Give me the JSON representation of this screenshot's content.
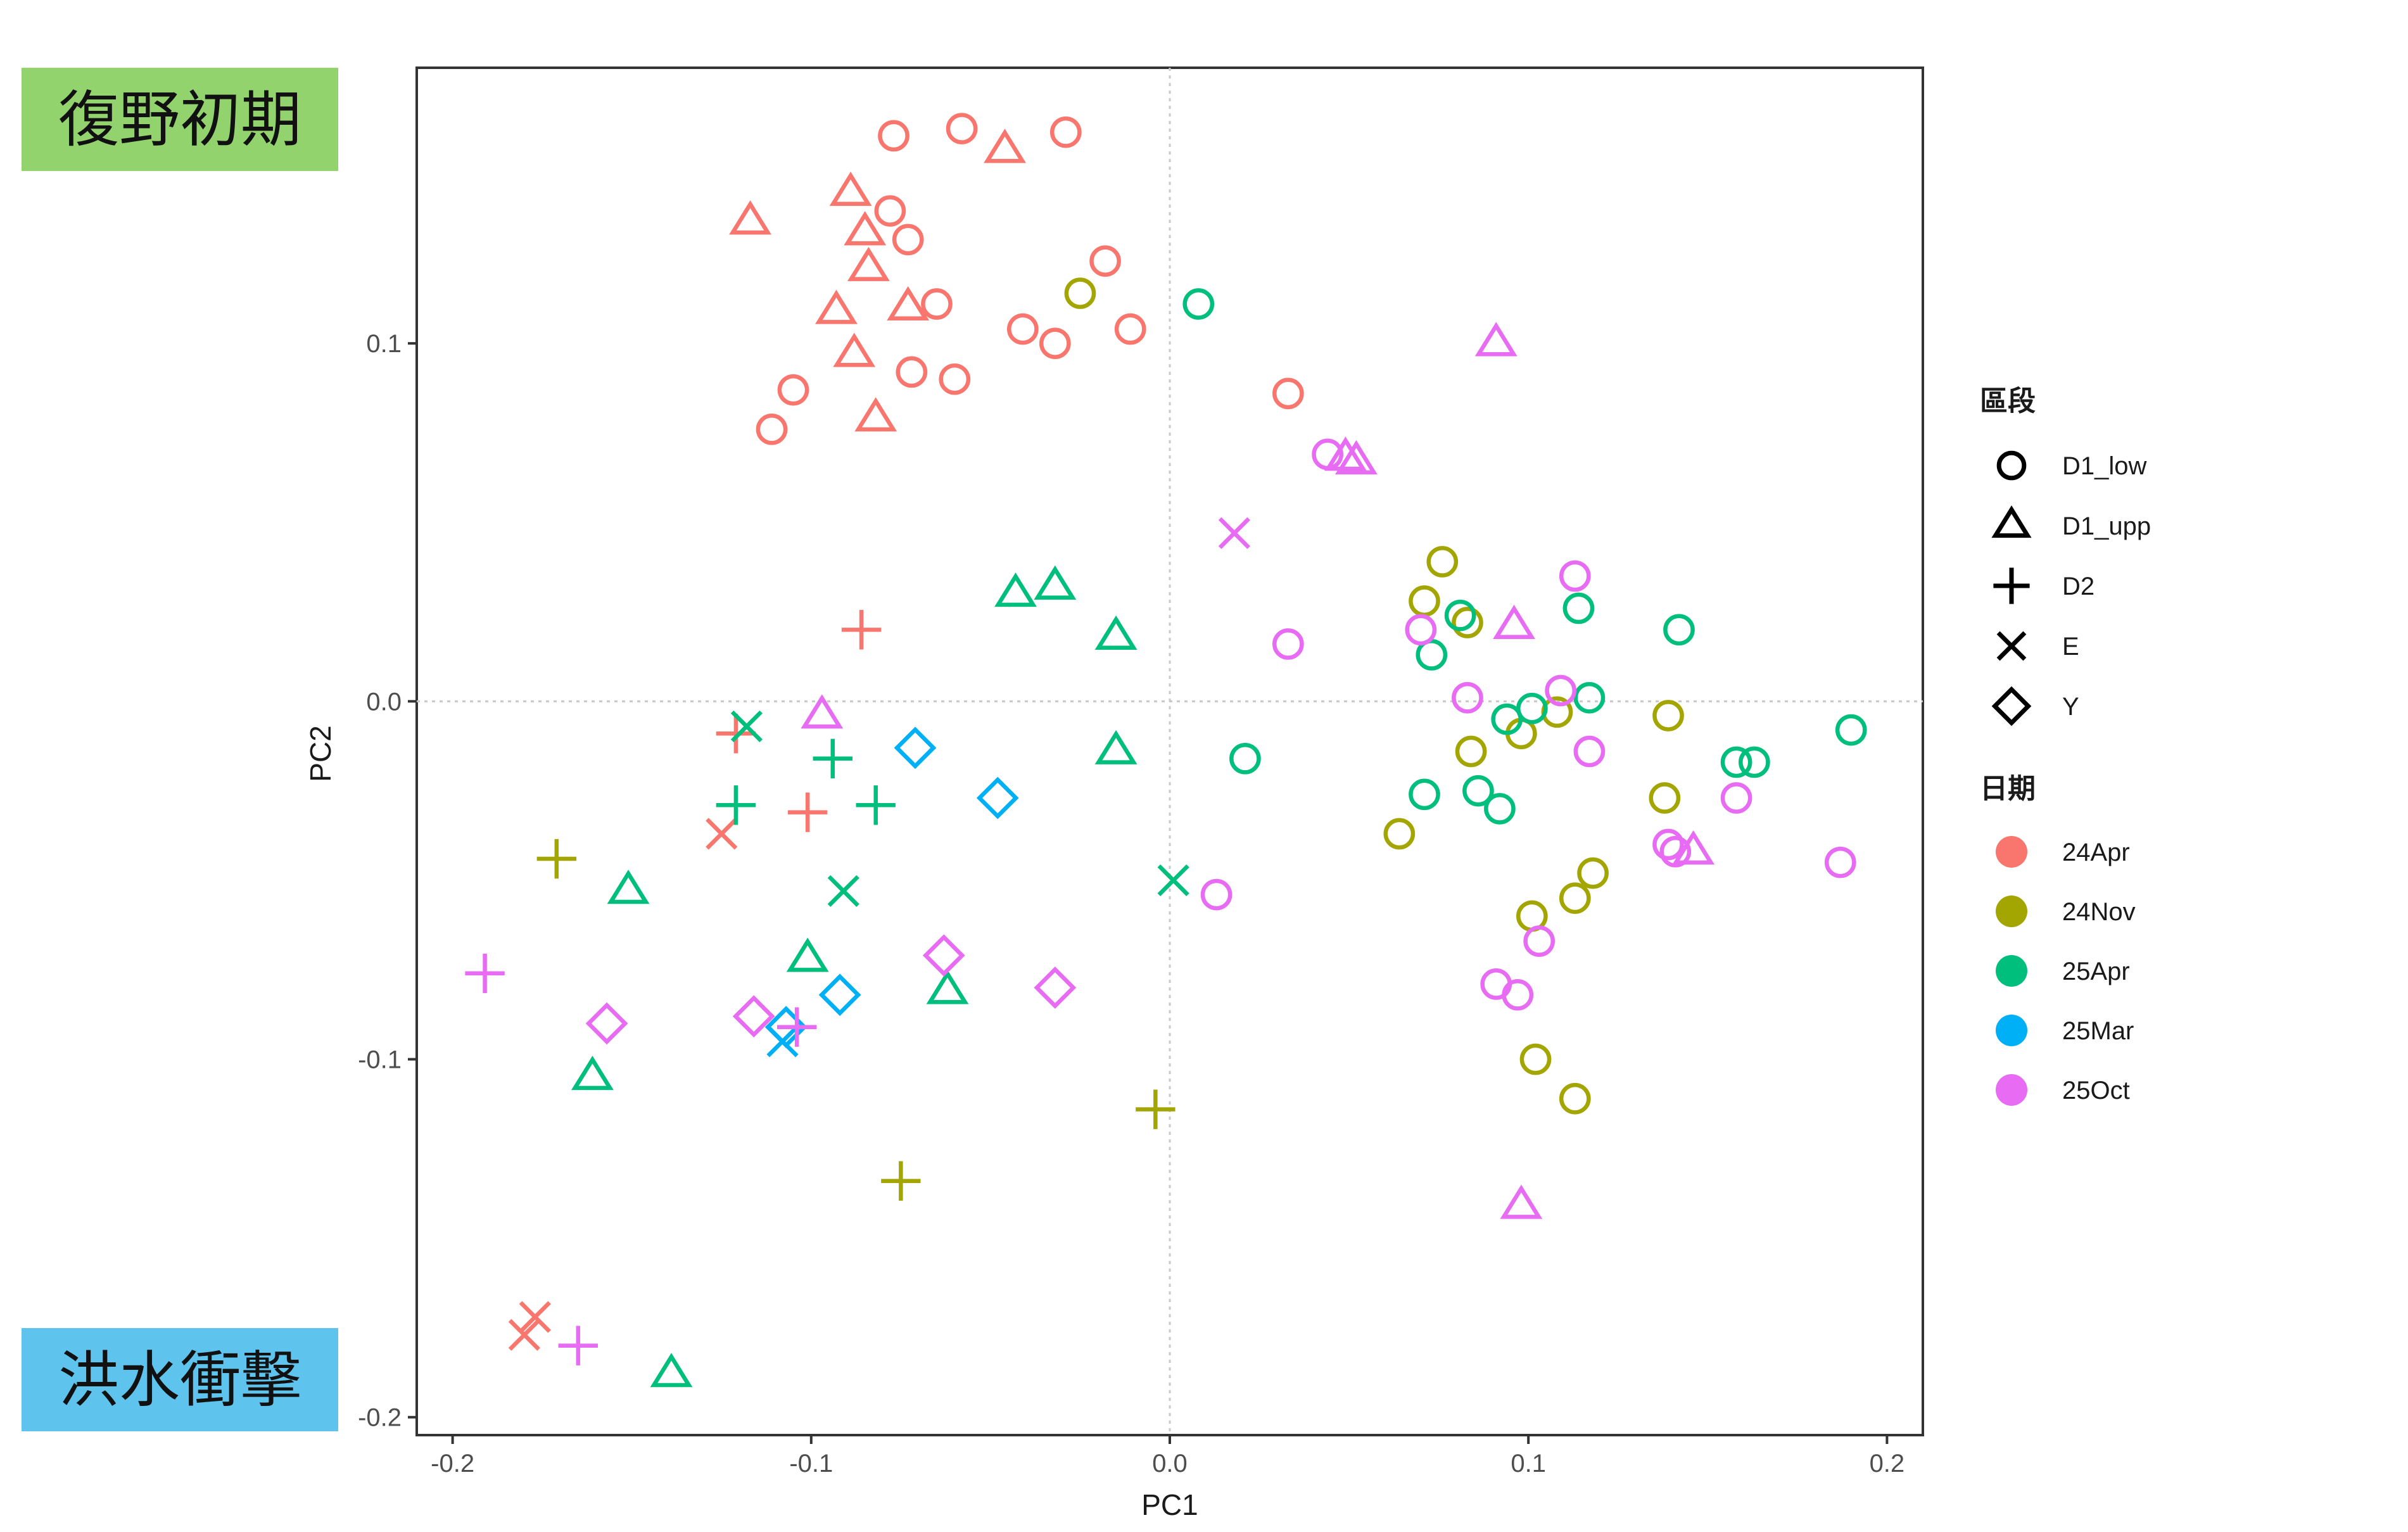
{
  "banners": {
    "top": {
      "text": "復野初期",
      "color": "#92d36e"
    },
    "bottom": {
      "text": "洪水衝擊",
      "color": "#5ec4ee"
    }
  },
  "colors": {
    "24Apr": "#f8766d",
    "24Nov": "#a3a500",
    "25Apr": "#00bf7d",
    "25Mar": "#00b0f6",
    "25Oct": "#e76bf3"
  },
  "chart_data": {
    "type": "scatter",
    "xlabel": "PC1",
    "ylabel": "PC2",
    "xlim": [
      -0.21,
      0.21
    ],
    "ylim": [
      -0.205,
      0.177
    ],
    "xticks": [
      -0.2,
      -0.1,
      0.0,
      0.1,
      0.2
    ],
    "xtick_labels": [
      "-0.2",
      "-0.1",
      "0.0",
      "0.1",
      "0.2"
    ],
    "yticks": [
      -0.2,
      -0.1,
      0.0,
      0.1
    ],
    "ytick_labels": [
      "-0.2",
      "-0.1",
      "0.0",
      "0.1"
    ],
    "grid": "zero lines only (dotted)",
    "legend_placement": "right",
    "legend": {
      "shape_title": "區段",
      "shapes": [
        {
          "key": "circle",
          "label": "D1_low"
        },
        {
          "key": "triangle",
          "label": "D1_upp"
        },
        {
          "key": "plus",
          "label": "D2"
        },
        {
          "key": "cross",
          "label": "E"
        },
        {
          "key": "diamond",
          "label": "Y"
        }
      ],
      "color_title": "日期",
      "colors": [
        "24Apr",
        "24Nov",
        "25Apr",
        "25Mar",
        "25Oct"
      ]
    },
    "points": [
      {
        "x": -0.077,
        "y": 0.158,
        "shape": "circle",
        "group": "24Apr"
      },
      {
        "x": -0.058,
        "y": 0.16,
        "shape": "circle",
        "group": "24Apr"
      },
      {
        "x": -0.029,
        "y": 0.159,
        "shape": "circle",
        "group": "24Apr"
      },
      {
        "x": -0.078,
        "y": 0.137,
        "shape": "circle",
        "group": "24Apr"
      },
      {
        "x": -0.073,
        "y": 0.129,
        "shape": "circle",
        "group": "24Apr"
      },
      {
        "x": -0.018,
        "y": 0.123,
        "shape": "circle",
        "group": "24Apr"
      },
      {
        "x": -0.065,
        "y": 0.111,
        "shape": "circle",
        "group": "24Apr"
      },
      {
        "x": -0.041,
        "y": 0.104,
        "shape": "circle",
        "group": "24Apr"
      },
      {
        "x": -0.032,
        "y": 0.1,
        "shape": "circle",
        "group": "24Apr"
      },
      {
        "x": -0.011,
        "y": 0.104,
        "shape": "circle",
        "group": "24Apr"
      },
      {
        "x": -0.072,
        "y": 0.092,
        "shape": "circle",
        "group": "24Apr"
      },
      {
        "x": -0.06,
        "y": 0.09,
        "shape": "circle",
        "group": "24Apr"
      },
      {
        "x": -0.105,
        "y": 0.087,
        "shape": "circle",
        "group": "24Apr"
      },
      {
        "x": -0.111,
        "y": 0.076,
        "shape": "circle",
        "group": "24Apr"
      },
      {
        "x": 0.033,
        "y": 0.086,
        "shape": "circle",
        "group": "24Apr"
      },
      {
        "x": -0.046,
        "y": 0.154,
        "shape": "triangle",
        "group": "24Apr"
      },
      {
        "x": -0.117,
        "y": 0.134,
        "shape": "triangle",
        "group": "24Apr"
      },
      {
        "x": -0.089,
        "y": 0.142,
        "shape": "triangle",
        "group": "24Apr"
      },
      {
        "x": -0.085,
        "y": 0.131,
        "shape": "triangle",
        "group": "24Apr"
      },
      {
        "x": -0.084,
        "y": 0.121,
        "shape": "triangle",
        "group": "24Apr"
      },
      {
        "x": -0.093,
        "y": 0.109,
        "shape": "triangle",
        "group": "24Apr"
      },
      {
        "x": -0.073,
        "y": 0.11,
        "shape": "triangle",
        "group": "24Apr"
      },
      {
        "x": -0.088,
        "y": 0.097,
        "shape": "triangle",
        "group": "24Apr"
      },
      {
        "x": -0.082,
        "y": 0.079,
        "shape": "triangle",
        "group": "24Apr"
      },
      {
        "x": -0.086,
        "y": 0.02,
        "shape": "plus",
        "group": "24Apr"
      },
      {
        "x": -0.121,
        "y": -0.009,
        "shape": "plus",
        "group": "24Apr"
      },
      {
        "x": -0.101,
        "y": -0.031,
        "shape": "plus",
        "group": "24Apr"
      },
      {
        "x": -0.125,
        "y": -0.037,
        "shape": "cross",
        "group": "24Apr"
      },
      {
        "x": -0.177,
        "y": -0.172,
        "shape": "cross",
        "group": "24Apr"
      },
      {
        "x": -0.18,
        "y": -0.177,
        "shape": "cross",
        "group": "24Apr"
      },
      {
        "x": -0.025,
        "y": 0.114,
        "shape": "circle",
        "group": "24Nov"
      },
      {
        "x": 0.076,
        "y": 0.039,
        "shape": "circle",
        "group": "24Nov"
      },
      {
        "x": 0.071,
        "y": 0.028,
        "shape": "circle",
        "group": "24Nov"
      },
      {
        "x": 0.083,
        "y": 0.022,
        "shape": "circle",
        "group": "24Nov"
      },
      {
        "x": 0.108,
        "y": -0.003,
        "shape": "circle",
        "group": "24Nov"
      },
      {
        "x": 0.098,
        "y": -0.009,
        "shape": "circle",
        "group": "24Nov"
      },
      {
        "x": 0.084,
        "y": -0.014,
        "shape": "circle",
        "group": "24Nov"
      },
      {
        "x": 0.139,
        "y": -0.004,
        "shape": "circle",
        "group": "24Nov"
      },
      {
        "x": 0.138,
        "y": -0.027,
        "shape": "circle",
        "group": "24Nov"
      },
      {
        "x": 0.064,
        "y": -0.037,
        "shape": "circle",
        "group": "24Nov"
      },
      {
        "x": 0.118,
        "y": -0.048,
        "shape": "circle",
        "group": "24Nov"
      },
      {
        "x": 0.113,
        "y": -0.055,
        "shape": "circle",
        "group": "24Nov"
      },
      {
        "x": 0.101,
        "y": -0.06,
        "shape": "circle",
        "group": "24Nov"
      },
      {
        "x": 0.102,
        "y": -0.1,
        "shape": "circle",
        "group": "24Nov"
      },
      {
        "x": 0.113,
        "y": -0.111,
        "shape": "circle",
        "group": "24Nov"
      },
      {
        "x": -0.171,
        "y": -0.044,
        "shape": "plus",
        "group": "24Nov"
      },
      {
        "x": -0.004,
        "y": -0.114,
        "shape": "plus",
        "group": "24Nov"
      },
      {
        "x": -0.075,
        "y": -0.134,
        "shape": "plus",
        "group": "24Nov"
      },
      {
        "x": 0.008,
        "y": 0.111,
        "shape": "circle",
        "group": "25Apr"
      },
      {
        "x": 0.081,
        "y": 0.024,
        "shape": "circle",
        "group": "25Apr"
      },
      {
        "x": 0.114,
        "y": 0.026,
        "shape": "circle",
        "group": "25Apr"
      },
      {
        "x": 0.142,
        "y": 0.02,
        "shape": "circle",
        "group": "25Apr"
      },
      {
        "x": 0.073,
        "y": 0.013,
        "shape": "circle",
        "group": "25Apr"
      },
      {
        "x": 0.117,
        "y": 0.001,
        "shape": "circle",
        "group": "25Apr"
      },
      {
        "x": 0.101,
        "y": -0.002,
        "shape": "circle",
        "group": "25Apr"
      },
      {
        "x": 0.094,
        "y": -0.005,
        "shape": "circle",
        "group": "25Apr"
      },
      {
        "x": 0.021,
        "y": -0.016,
        "shape": "circle",
        "group": "25Apr"
      },
      {
        "x": 0.071,
        "y": -0.026,
        "shape": "circle",
        "group": "25Apr"
      },
      {
        "x": 0.086,
        "y": -0.025,
        "shape": "circle",
        "group": "25Apr"
      },
      {
        "x": 0.092,
        "y": -0.03,
        "shape": "circle",
        "group": "25Apr"
      },
      {
        "x": 0.158,
        "y": -0.017,
        "shape": "circle",
        "group": "25Apr"
      },
      {
        "x": 0.163,
        "y": -0.017,
        "shape": "circle",
        "group": "25Apr"
      },
      {
        "x": 0.19,
        "y": -0.008,
        "shape": "circle",
        "group": "25Apr"
      },
      {
        "x": -0.043,
        "y": 0.03,
        "shape": "triangle",
        "group": "25Apr"
      },
      {
        "x": -0.032,
        "y": 0.032,
        "shape": "triangle",
        "group": "25Apr"
      },
      {
        "x": -0.015,
        "y": 0.018,
        "shape": "triangle",
        "group": "25Apr"
      },
      {
        "x": -0.015,
        "y": -0.014,
        "shape": "triangle",
        "group": "25Apr"
      },
      {
        "x": -0.151,
        "y": -0.053,
        "shape": "triangle",
        "group": "25Apr"
      },
      {
        "x": -0.101,
        "y": -0.072,
        "shape": "triangle",
        "group": "25Apr"
      },
      {
        "x": -0.062,
        "y": -0.081,
        "shape": "triangle",
        "group": "25Apr"
      },
      {
        "x": -0.161,
        "y": -0.105,
        "shape": "triangle",
        "group": "25Apr"
      },
      {
        "x": -0.139,
        "y": -0.188,
        "shape": "triangle",
        "group": "25Apr"
      },
      {
        "x": -0.094,
        "y": -0.016,
        "shape": "plus",
        "group": "25Apr"
      },
      {
        "x": -0.121,
        "y": -0.029,
        "shape": "plus",
        "group": "25Apr"
      },
      {
        "x": -0.082,
        "y": -0.029,
        "shape": "plus",
        "group": "25Apr"
      },
      {
        "x": -0.118,
        "y": -0.007,
        "shape": "cross",
        "group": "25Apr"
      },
      {
        "x": -0.091,
        "y": -0.053,
        "shape": "cross",
        "group": "25Apr"
      },
      {
        "x": 0.001,
        "y": -0.05,
        "shape": "cross",
        "group": "25Apr"
      },
      {
        "x": -0.071,
        "y": -0.013,
        "shape": "diamond",
        "group": "25Mar"
      },
      {
        "x": -0.048,
        "y": -0.027,
        "shape": "diamond",
        "group": "25Mar"
      },
      {
        "x": -0.092,
        "y": -0.082,
        "shape": "diamond",
        "group": "25Mar"
      },
      {
        "x": -0.107,
        "y": -0.091,
        "shape": "diamond",
        "group": "25Mar"
      },
      {
        "x": -0.108,
        "y": -0.095,
        "shape": "cross",
        "group": "25Mar"
      },
      {
        "x": 0.044,
        "y": 0.069,
        "shape": "circle",
        "group": "25Oct"
      },
      {
        "x": 0.033,
        "y": 0.016,
        "shape": "circle",
        "group": "25Oct"
      },
      {
        "x": 0.07,
        "y": 0.02,
        "shape": "circle",
        "group": "25Oct"
      },
      {
        "x": 0.113,
        "y": 0.035,
        "shape": "circle",
        "group": "25Oct"
      },
      {
        "x": 0.083,
        "y": 0.001,
        "shape": "circle",
        "group": "25Oct"
      },
      {
        "x": 0.109,
        "y": 0.003,
        "shape": "circle",
        "group": "25Oct"
      },
      {
        "x": 0.117,
        "y": -0.014,
        "shape": "circle",
        "group": "25Oct"
      },
      {
        "x": 0.158,
        "y": -0.027,
        "shape": "circle",
        "group": "25Oct"
      },
      {
        "x": 0.139,
        "y": -0.04,
        "shape": "circle",
        "group": "25Oct"
      },
      {
        "x": 0.141,
        "y": -0.042,
        "shape": "circle",
        "group": "25Oct"
      },
      {
        "x": 0.187,
        "y": -0.045,
        "shape": "circle",
        "group": "25Oct"
      },
      {
        "x": 0.013,
        "y": -0.054,
        "shape": "circle",
        "group": "25Oct"
      },
      {
        "x": 0.103,
        "y": -0.067,
        "shape": "circle",
        "group": "25Oct"
      },
      {
        "x": 0.091,
        "y": -0.079,
        "shape": "circle",
        "group": "25Oct"
      },
      {
        "x": 0.097,
        "y": -0.082,
        "shape": "circle",
        "group": "25Oct"
      },
      {
        "x": 0.091,
        "y": 0.1,
        "shape": "triangle",
        "group": "25Oct"
      },
      {
        "x": 0.049,
        "y": 0.068,
        "shape": "triangle",
        "group": "25Oct"
      },
      {
        "x": 0.052,
        "y": 0.067,
        "shape": "triangle",
        "group": "25Oct"
      },
      {
        "x": 0.096,
        "y": 0.021,
        "shape": "triangle",
        "group": "25Oct"
      },
      {
        "x": -0.097,
        "y": -0.004,
        "shape": "triangle",
        "group": "25Oct"
      },
      {
        "x": 0.146,
        "y": -0.042,
        "shape": "triangle",
        "group": "25Oct"
      },
      {
        "x": 0.098,
        "y": -0.141,
        "shape": "triangle",
        "group": "25Oct"
      },
      {
        "x": 0.018,
        "y": 0.047,
        "shape": "cross",
        "group": "25Oct"
      },
      {
        "x": -0.191,
        "y": -0.076,
        "shape": "plus",
        "group": "25Oct"
      },
      {
        "x": -0.104,
        "y": -0.091,
        "shape": "plus",
        "group": "25Oct"
      },
      {
        "x": -0.165,
        "y": -0.18,
        "shape": "plus",
        "group": "25Oct"
      },
      {
        "x": -0.157,
        "y": -0.09,
        "shape": "diamond",
        "group": "25Oct"
      },
      {
        "x": -0.116,
        "y": -0.088,
        "shape": "diamond",
        "group": "25Oct"
      },
      {
        "x": -0.063,
        "y": -0.071,
        "shape": "diamond",
        "group": "25Oct"
      },
      {
        "x": -0.032,
        "y": -0.08,
        "shape": "diamond",
        "group": "25Oct"
      }
    ]
  }
}
